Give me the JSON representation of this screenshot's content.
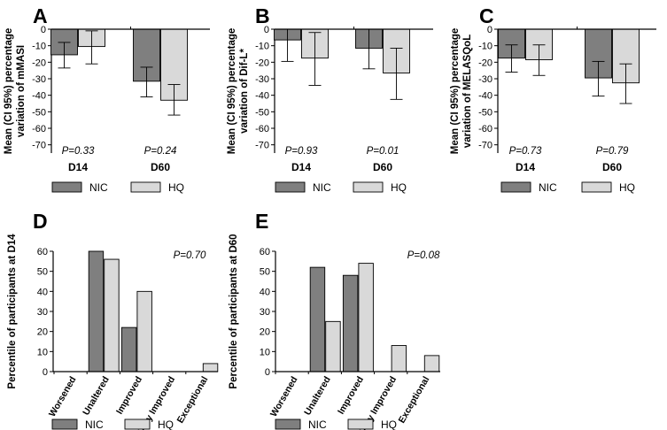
{
  "colors": {
    "nic": "#7f7f7f",
    "hq": "#d9d9d9",
    "edge": "#000000"
  },
  "legend": {
    "nic": "NIC",
    "hq": "HQ"
  },
  "chart_data": [
    {
      "panel": "A",
      "type": "bar",
      "title": "",
      "ylabel_lines": [
        "Mean (CI 95%) percentage",
        "variation of mMASI"
      ],
      "xlabel": "",
      "categories": [
        "D14",
        "D60"
      ],
      "ylim": [
        -75,
        0
      ],
      "yticks": [
        0,
        -10,
        -20,
        -30,
        -40,
        -50,
        -60,
        -70
      ],
      "series": [
        {
          "name": "NIC",
          "values": [
            -15.5,
            -31.5
          ],
          "err_low": [
            -23.5,
            -41
          ],
          "err_high": [
            -8,
            -23
          ]
        },
        {
          "name": "HQ",
          "values": [
            -10.5,
            -43
          ],
          "err_low": [
            -21,
            -52
          ],
          "err_high": [
            -1,
            -33.5
          ]
        }
      ],
      "annotations": [
        "P=0.33",
        "P=0.24"
      ]
    },
    {
      "panel": "B",
      "type": "bar",
      "title": "",
      "ylabel_lines": [
        "Mean (CI 95%) percentage",
        "variation of Dif-L*"
      ],
      "xlabel": "",
      "categories": [
        "D14",
        "D60"
      ],
      "ylim": [
        -75,
        0
      ],
      "yticks": [
        0,
        -10,
        -20,
        -30,
        -40,
        -50,
        -60,
        -70
      ],
      "series": [
        {
          "name": "NIC",
          "values": [
            -6.5,
            -11.5
          ],
          "err_low": [
            -19.5,
            -24
          ],
          "err_high": [
            0,
            0
          ]
        },
        {
          "name": "HQ",
          "values": [
            -17.5,
            -26.5
          ],
          "err_low": [
            -34,
            -42.5
          ],
          "err_high": [
            -2,
            -11.5
          ]
        }
      ],
      "annotations": [
        "P=0.93",
        "P=0.01"
      ]
    },
    {
      "panel": "C",
      "type": "bar",
      "title": "",
      "ylabel_lines": [
        "Mean (CI 95%) percentage",
        "variation of MELASQoL"
      ],
      "xlabel": "",
      "categories": [
        "D14",
        "D60"
      ],
      "ylim": [
        -75,
        0
      ],
      "yticks": [
        0,
        -10,
        -20,
        -30,
        -40,
        -50,
        -60,
        -70
      ],
      "series": [
        {
          "name": "NIC",
          "values": [
            -17.5,
            -29.5
          ],
          "err_low": [
            -26,
            -40.5
          ],
          "err_high": [
            -9.5,
            -19.5
          ]
        },
        {
          "name": "HQ",
          "values": [
            -18.5,
            -32.5
          ],
          "err_low": [
            -28,
            -45
          ],
          "err_high": [
            -9.5,
            -21
          ]
        }
      ],
      "annotations": [
        "P=0.73",
        "P=0.79"
      ]
    },
    {
      "panel": "D",
      "type": "bar",
      "title": "",
      "ylabel_lines": [
        "Percentile of participants at D14"
      ],
      "xlabel": "",
      "categories": [
        "Worsened",
        "Unaltered",
        "Improved",
        "Very Improved",
        "Exceptional"
      ],
      "ylim": [
        0,
        60
      ],
      "yticks": [
        0,
        10,
        20,
        30,
        40,
        50,
        60
      ],
      "series": [
        {
          "name": "NIC",
          "values": [
            0,
            60,
            22,
            0,
            0
          ]
        },
        {
          "name": "HQ",
          "values": [
            0,
            56,
            40,
            0,
            4
          ]
        }
      ],
      "annotations": [
        "P=0.70"
      ]
    },
    {
      "panel": "E",
      "type": "bar",
      "title": "",
      "ylabel_lines": [
        "Percentile of participants at D60"
      ],
      "xlabel": "",
      "categories": [
        "Worsened",
        "Unaltered",
        "Improved",
        "Very Improved",
        "Exceptional"
      ],
      "ylim": [
        0,
        60
      ],
      "yticks": [
        0,
        10,
        20,
        30,
        40,
        50,
        60
      ],
      "series": [
        {
          "name": "NIC",
          "values": [
            0,
            52,
            48,
            0,
            0
          ]
        },
        {
          "name": "HQ",
          "values": [
            0,
            25,
            54,
            13,
            8
          ]
        }
      ],
      "annotations": [
        "P=0.08"
      ]
    }
  ]
}
